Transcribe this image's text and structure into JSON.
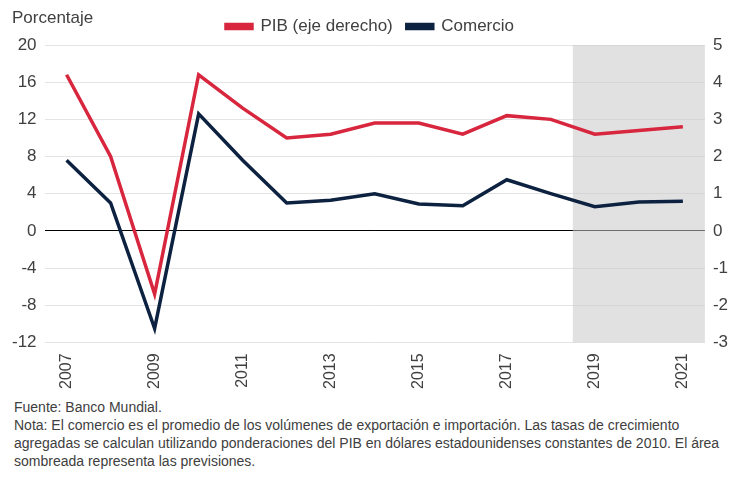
{
  "chart_data": {
    "type": "line",
    "ylabel": "Porcentaje",
    "categories": [
      "2007",
      null,
      "2009",
      null,
      "2011",
      null,
      "2013",
      null,
      "2015",
      null,
      "2017",
      null,
      "2019",
      null,
      "2021"
    ],
    "series": [
      {
        "name": "Comercio",
        "color": "#0d2240",
        "values": [
          7.6,
          3.0,
          -10.5,
          12.6,
          7.6,
          3.0,
          3.3,
          4.0,
          2.9,
          2.7,
          5.5,
          4.0,
          2.6,
          3.1,
          3.2
        ]
      },
      {
        "name": "PIB (eje derecho)",
        "color": "#d7263d",
        "axis": "y2",
        "values": [
          4.2,
          2.0,
          -1.7,
          4.2,
          3.3,
          2.5,
          2.6,
          2.9,
          2.9,
          2.6,
          3.1,
          3.0,
          2.6,
          2.7,
          2.8
        ]
      }
    ],
    "ylim": [
      -12,
      20
    ],
    "yticks": [
      -12,
      -8,
      -4,
      0,
      4,
      8,
      12,
      16,
      20
    ],
    "y2lim": [
      -3,
      5
    ],
    "y2ticks": [
      -3,
      -2,
      -1,
      0,
      1,
      2,
      3,
      4,
      5
    ],
    "grid": true,
    "legend": "top",
    "shaded_range": [
      "2019",
      "2021"
    ],
    "notes": [
      "Fuente: Banco Mundial.",
      "Nota: El comercio es el promedio de los volúmenes de exportación e importación. Las tasas de crecimiento agregadas se calculan utilizando ponderaciones del PIB en dólares estadounidenses constantes de 2010. El área sombreada representa las previsiones."
    ]
  }
}
